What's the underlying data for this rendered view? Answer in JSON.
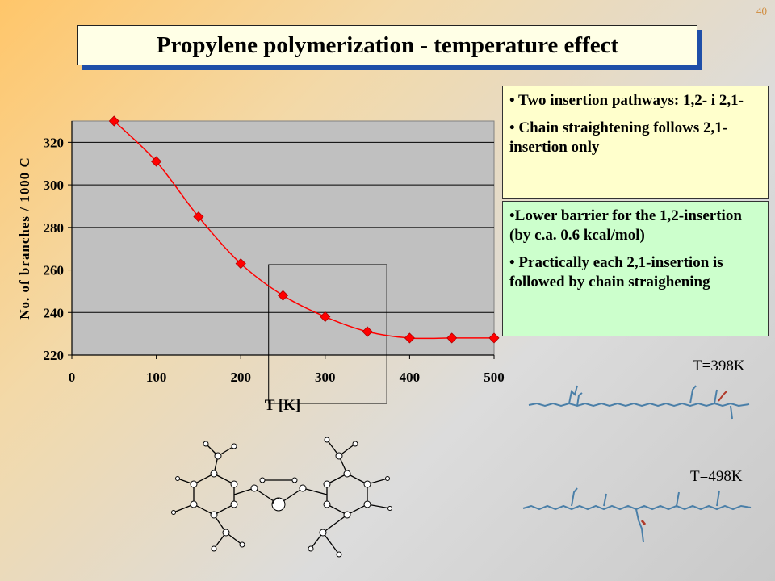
{
  "slide": {
    "number": "40",
    "title": "Propylene polymerization - temperature effect"
  },
  "chart_data": {
    "type": "line",
    "x": [
      50,
      100,
      150,
      200,
      250,
      300,
      350,
      400,
      450,
      500
    ],
    "values": [
      330,
      311,
      285,
      263,
      248,
      238,
      231,
      228,
      228,
      228
    ],
    "xlabel": "T [K]",
    "ylabel": "No. of branches / 1000 C",
    "xlim": [
      0,
      500
    ],
    "ylim": [
      220,
      330
    ],
    "xticks": [
      0,
      100,
      200,
      300,
      400,
      500
    ],
    "yticks": [
      220,
      240,
      260,
      280,
      300,
      320
    ],
    "grid": "horizontal",
    "marker": "diamond",
    "color": "#ff0000",
    "plot_background": "#c0c0c0",
    "highlight_box_x": [
      233,
      373
    ]
  },
  "notes": {
    "box1": [
      "• Two insertion pathways: 1,2- i 2,1-",
      "• Chain straightening follows 2,1-insertion only"
    ],
    "box2": [
      "•Lower barrier for the 1,2-insertion (by c.a. 0.6 kcal/mol)",
      "• Practically each 2,1-insertion is followed by chain straighening"
    ]
  },
  "labels": {
    "t1": "T=398K",
    "t2": "T=498K"
  },
  "icons": {
    "polymer_chain": "polymer-chain-drawing",
    "catalyst": "catalyst-molecule-drawing"
  }
}
